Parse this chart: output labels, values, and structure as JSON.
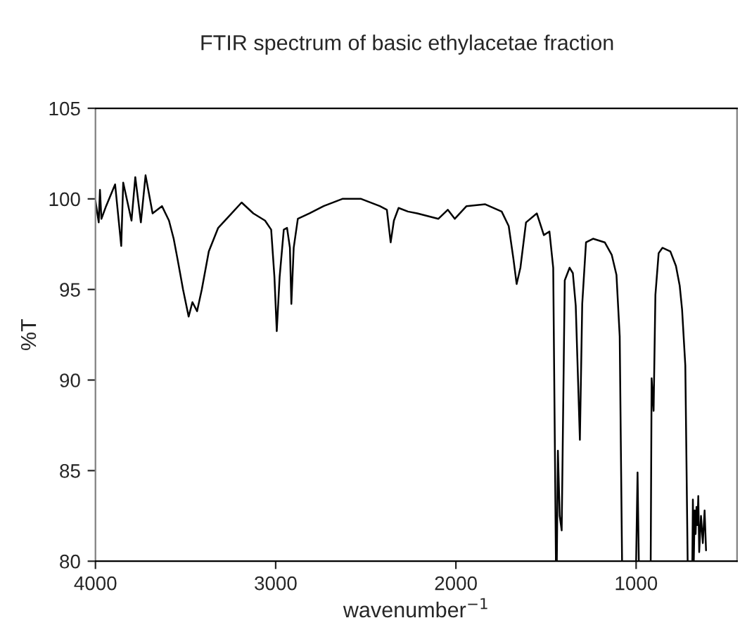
{
  "chart_data": {
    "type": "line",
    "title": "FTIR spectrum of basic ethylacetae fraction",
    "xlabel": "wavenumber$^{−1}$",
    "ylabel": "%T",
    "x": [
      4000,
      3982,
      3975,
      3967,
      3941,
      3891,
      3857,
      3846,
      3800,
      3779,
      3748,
      3722,
      3683,
      3631,
      3592,
      3566,
      3545,
      3514,
      3483,
      3462,
      3436,
      3410,
      3371,
      3319,
      3254,
      3189,
      3124,
      3059,
      3025,
      3007,
      2994,
      2978,
      2955,
      2937,
      2921,
      2913,
      2900,
      2877,
      2812,
      2734,
      2630,
      2526,
      2422,
      2383,
      2362,
      2344,
      2318,
      2266,
      2214,
      2097,
      2045,
      2006,
      1941,
      1837,
      1746,
      1707,
      1681,
      1663,
      1642,
      1611,
      1551,
      1512,
      1481,
      1460,
      1445,
      1442,
      1440,
      1434,
      1424,
      1413,
      1396,
      1369,
      1351,
      1335,
      1312,
      1299,
      1278,
      1239,
      1174,
      1135,
      1109,
      1091,
      1078,
      1040,
      1000,
      992,
      985,
      950,
      919,
      914,
      903,
      893,
      875,
      854,
      810,
      779,
      758,
      745,
      727,
      714,
      700,
      688,
      685,
      680,
      675,
      670,
      665,
      660,
      655,
      650,
      640,
      630,
      620,
      612
    ],
    "series": [
      {
        "color": "#000000",
        "values": [
          99.9,
          98.7,
          100.5,
          98.9,
          99.6,
          100.8,
          97.4,
          100.9,
          98.8,
          101.2,
          98.7,
          101.3,
          99.2,
          99.6,
          98.8,
          97.8,
          96.7,
          95.0,
          93.5,
          94.3,
          93.8,
          95.0,
          97.1,
          98.4,
          99.1,
          99.8,
          99.2,
          98.8,
          98.3,
          95.7,
          92.7,
          95.7,
          98.3,
          98.4,
          97.3,
          94.2,
          97.3,
          98.9,
          99.2,
          99.6,
          100.0,
          100.0,
          99.6,
          99.4,
          97.6,
          98.8,
          99.5,
          99.3,
          99.2,
          98.9,
          99.4,
          98.9,
          99.6,
          99.7,
          99.3,
          98.5,
          96.7,
          95.3,
          96.2,
          98.7,
          99.2,
          98.0,
          98.2,
          96.2,
          80,
          null,
          80,
          86.1,
          82.5,
          81.7,
          95.5,
          96.2,
          95.9,
          94.1,
          86.7,
          94.2,
          97.6,
          97.8,
          97.6,
          96.9,
          95.8,
          92.4,
          80,
          null,
          80,
          84.9,
          80,
          null,
          80,
          90.1,
          88.3,
          94.7,
          97.0,
          97.3,
          97.1,
          96.3,
          95.2,
          93.9,
          90.8,
          80,
          null,
          80,
          83.4,
          80,
          82.8,
          81.5,
          83.0,
          82.0,
          83.6,
          80.5,
          82.5,
          81.0,
          82.8,
          80.6
        ]
      }
    ],
    "xlim": [
      4000,
      440
    ],
    "xticks": [
      4000,
      3000,
      2000,
      1000
    ],
    "ylim": [
      80,
      105
    ],
    "yticks": [
      80,
      85,
      90,
      95,
      100,
      105
    ],
    "grid": false,
    "legend": false,
    "marker": "none",
    "line_style": "solid"
  }
}
